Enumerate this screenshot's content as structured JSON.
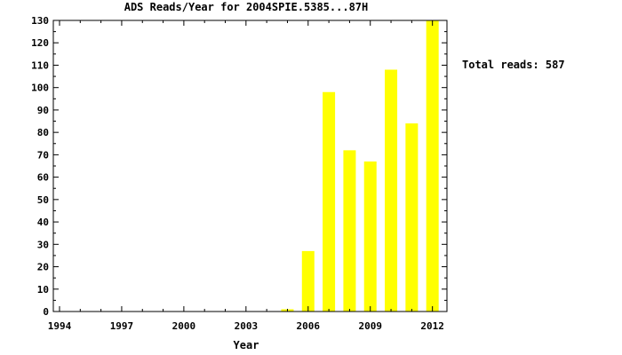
{
  "chart_data": {
    "type": "bar",
    "title": "ADS Reads/Year for 2004SPIE.5385...87H",
    "xlabel": "Year",
    "ylabel": "",
    "categories": [
      "1994",
      "1995",
      "1996",
      "1997",
      "1998",
      "1999",
      "2000",
      "2001",
      "2002",
      "2003",
      "2004",
      "2005",
      "2006",
      "2007",
      "2008",
      "2009",
      "2010",
      "2011",
      "2012"
    ],
    "values": [
      0,
      0,
      0,
      0,
      0,
      0,
      0,
      0,
      0,
      0,
      0,
      1,
      27,
      98,
      72,
      67,
      108,
      84,
      130
    ],
    "xlim": [
      1993.7,
      2012.7
    ],
    "ylim": [
      0,
      130
    ],
    "x_ticks": [
      "1994",
      "1997",
      "2000",
      "2003",
      "2006",
      "2009",
      "2012"
    ],
    "y_ticks": [
      "0",
      "10",
      "20",
      "30",
      "40",
      "50",
      "60",
      "70",
      "80",
      "90",
      "100",
      "110",
      "120",
      "130"
    ],
    "annotation": "Total reads: 587",
    "grid": false,
    "legend": "none",
    "bar_color": "#ffff00",
    "axis_color": "#000000"
  }
}
